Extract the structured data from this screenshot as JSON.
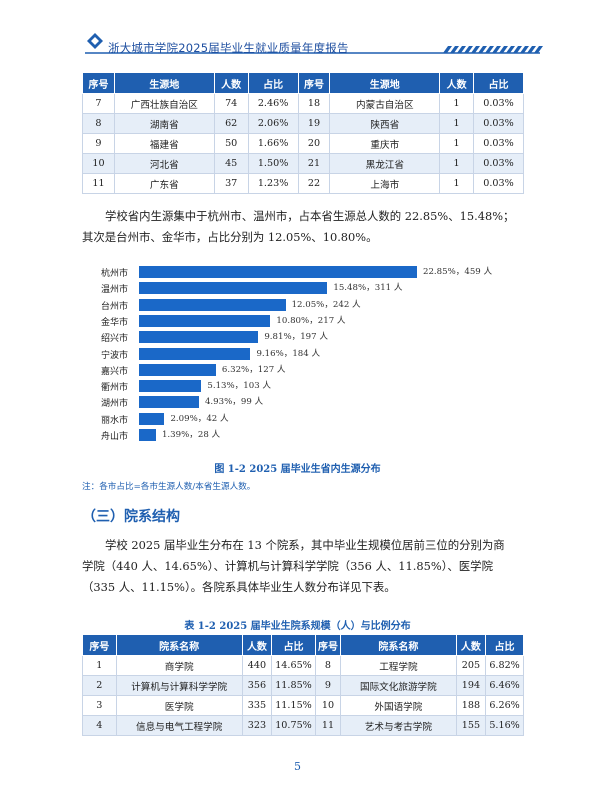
{
  "header": {
    "title": "浙大城市学院2025届毕业生就业质量年度报告"
  },
  "table1": {
    "headers": [
      "序号",
      "生源地",
      "人数",
      "占比",
      "序号",
      "生源地",
      "人数",
      "占比"
    ],
    "rows": [
      [
        "7",
        "广西壮族自治区",
        "74",
        "2.46%",
        "18",
        "内蒙古自治区",
        "1",
        "0.03%"
      ],
      [
        "8",
        "湖南省",
        "62",
        "2.06%",
        "19",
        "陕西省",
        "1",
        "0.03%"
      ],
      [
        "9",
        "福建省",
        "50",
        "1.66%",
        "20",
        "重庆市",
        "1",
        "0.03%"
      ],
      [
        "10",
        "河北省",
        "45",
        "1.50%",
        "21",
        "黑龙江省",
        "1",
        "0.03%"
      ],
      [
        "11",
        "广东省",
        "37",
        "1.23%",
        "22",
        "上海市",
        "1",
        "0.03%"
      ]
    ]
  },
  "para1": {
    "line1": "学校省内生源集中于杭州市、温州市，占本省生源总人数的 22.85%、15.48%；",
    "line2": "其次是台州市、金华市，占比分别为 12.05%、10.80%。"
  },
  "chart_data": {
    "type": "bar",
    "orientation": "horizontal",
    "categories": [
      "杭州市",
      "温州市",
      "台州市",
      "金华市",
      "绍兴市",
      "宁波市",
      "嘉兴市",
      "衢州市",
      "湖州市",
      "丽水市",
      "舟山市"
    ],
    "values": [
      459,
      311,
      242,
      217,
      197,
      184,
      127,
      103,
      99,
      42,
      28
    ],
    "labels": [
      "22.85%，459 人",
      "15.48%，311 人",
      "12.05%，242 人",
      "10.80%，217 人",
      "9.81%，197 人",
      "9.16%，184 人",
      "6.32%，127 人",
      "5.13%，103 人",
      "4.93%，99 人",
      "2.09%，42 人",
      "1.39%，28 人"
    ],
    "bar_color": "#1a68c8",
    "title": "",
    "xlabel": "",
    "ylabel": ""
  },
  "figure_caption": "图 1-2  2025 届毕业生省内生源分布",
  "note": "注：各市占比=各市生源人数/本省生源人数。",
  "section_title": "（三）院系结构",
  "para2": {
    "line1": "学校 2025 届毕业生分布在 13 个院系，其中毕业生规模位居前三位的分别为商",
    "line2": "学院（440 人、14.65%）、计算机与计算科学学院（356 人、11.85%）、医学院",
    "line3": "（335 人、11.15%）。各院系具体毕业生人数分布详见下表。"
  },
  "table2_caption": "表 1-2  2025 届毕业生院系规模（人）与比例分布",
  "table2": {
    "headers": [
      "序号",
      "院系名称",
      "人数",
      "占比",
      "序号",
      "院系名称",
      "人数",
      "占比"
    ],
    "rows": [
      [
        "1",
        "商学院",
        "440",
        "14.65%",
        "8",
        "工程学院",
        "205",
        "6.82%"
      ],
      [
        "2",
        "计算机与计算科学学院",
        "356",
        "11.85%",
        "9",
        "国际文化旅游学院",
        "194",
        "6.46%"
      ],
      [
        "3",
        "医学院",
        "335",
        "11.15%",
        "10",
        "外国语学院",
        "188",
        "6.26%"
      ],
      [
        "4",
        "信息与电气工程学院",
        "323",
        "10.75%",
        "11",
        "艺术与考古学院",
        "155",
        "5.16%"
      ]
    ]
  },
  "page_number": "5"
}
